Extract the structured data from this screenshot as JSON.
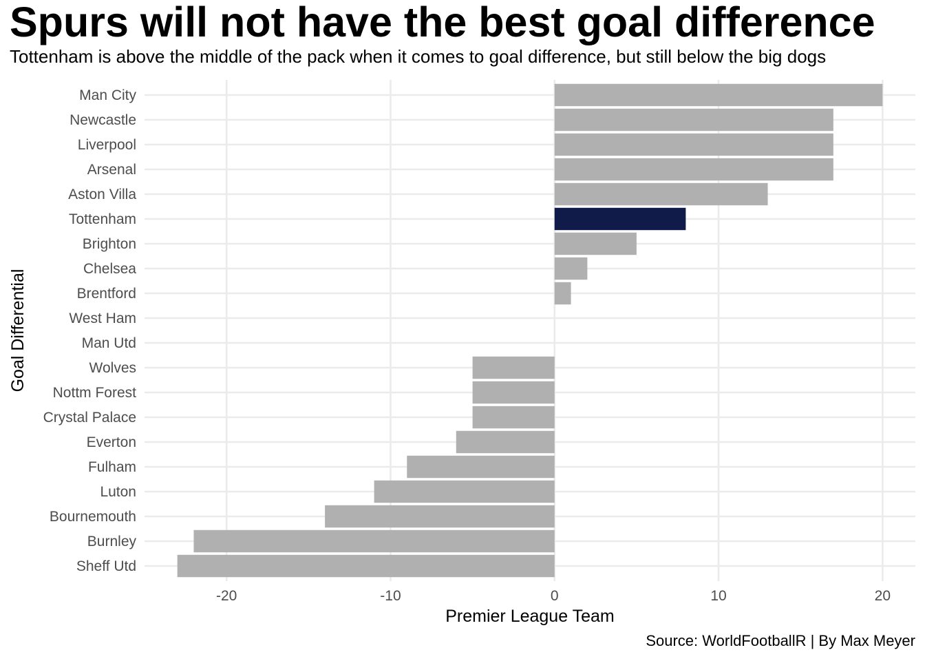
{
  "chart_data": {
    "type": "bar",
    "orientation": "horizontal",
    "title": "Spurs will not have the best goal difference",
    "subtitle": "Tottenham is above the middle of the pack when it comes to goal difference, but still below the big dogs",
    "caption": "Source: WorldFootballR | By Max Meyer",
    "xlabel": "Premier League Team",
    "ylabel": "Goal Differential",
    "xlim": [
      -25,
      22
    ],
    "xticks": [
      -20,
      -10,
      0,
      10,
      20
    ],
    "grid": true,
    "legend": "none",
    "categories": [
      "Man City",
      "Newcastle",
      "Liverpool",
      "Arsenal",
      "Aston Villa",
      "Tottenham",
      "Brighton",
      "Chelsea",
      "Brentford",
      "West Ham",
      "Man Utd",
      "Wolves",
      "Nottm Forest",
      "Crystal Palace",
      "Everton",
      "Fulham",
      "Luton",
      "Bournemouth",
      "Burnley",
      "Sheff Utd"
    ],
    "values": [
      20,
      17,
      17,
      17,
      13,
      8,
      5,
      2,
      1,
      0,
      0,
      -5,
      -5,
      -5,
      -6,
      -9,
      -11,
      -14,
      -22,
      -23
    ],
    "highlight": "Tottenham",
    "colors": {
      "bar": "#b0b0b0",
      "highlight": "#111b49",
      "grid": "#ebebeb"
    }
  }
}
